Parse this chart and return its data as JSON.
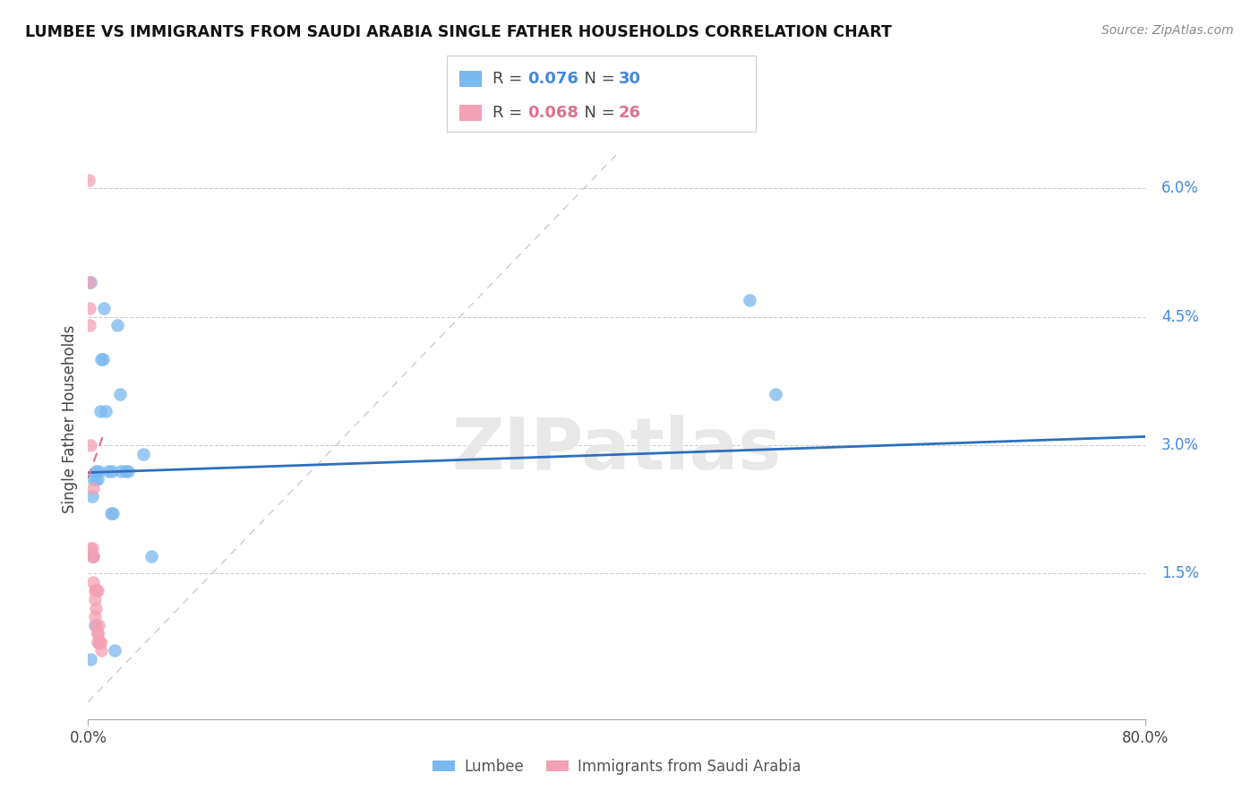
{
  "title": "LUMBEE VS IMMIGRANTS FROM SAUDI ARABIA SINGLE FATHER HOUSEHOLDS CORRELATION CHART",
  "source": "Source: ZipAtlas.com",
  "ylabel": "Single Father Households",
  "right_yticks": [
    "6.0%",
    "4.5%",
    "3.0%",
    "1.5%"
  ],
  "right_ytick_vals": [
    0.06,
    0.045,
    0.03,
    0.015
  ],
  "lumbee_color": "#7ab8f0",
  "saudi_color": "#f4a0b5",
  "trendline_lumbee_color": "#2e6fbe",
  "trendline_saudi_color": "#e07090",
  "watermark": "ZIPatlas",
  "lumbee_x": [
    0.002,
    0.004,
    0.006,
    0.007,
    0.008,
    0.009,
    0.01,
    0.011,
    0.012,
    0.013,
    0.015,
    0.017,
    0.019,
    0.022,
    0.024,
    0.028,
    0.03,
    0.002,
    0.003,
    0.004,
    0.005,
    0.006,
    0.018,
    0.02,
    0.042,
    0.048,
    0.5,
    0.52,
    0.003,
    0.025
  ],
  "lumbee_y": [
    0.049,
    0.026,
    0.026,
    0.026,
    0.027,
    0.034,
    0.04,
    0.04,
    0.046,
    0.034,
    0.027,
    0.022,
    0.022,
    0.044,
    0.036,
    0.027,
    0.027,
    0.005,
    0.017,
    0.017,
    0.009,
    0.027,
    0.027,
    0.006,
    0.029,
    0.017,
    0.047,
    0.036,
    0.024,
    0.027
  ],
  "saudi_x": [
    0.0005,
    0.001,
    0.001,
    0.001,
    0.002,
    0.002,
    0.003,
    0.003,
    0.004,
    0.004,
    0.004,
    0.005,
    0.005,
    0.005,
    0.006,
    0.006,
    0.006,
    0.007,
    0.007,
    0.007,
    0.007,
    0.008,
    0.008,
    0.009,
    0.009,
    0.01
  ],
  "saudi_y": [
    0.061,
    0.049,
    0.046,
    0.044,
    0.03,
    0.018,
    0.018,
    0.017,
    0.017,
    0.014,
    0.025,
    0.013,
    0.012,
    0.01,
    0.013,
    0.011,
    0.009,
    0.008,
    0.007,
    0.013,
    0.008,
    0.009,
    0.007,
    0.007,
    0.007,
    0.006
  ],
  "xlim": [
    0.0,
    0.8
  ],
  "ylim": [
    -0.002,
    0.068
  ],
  "blue_trendline_x": [
    0.0,
    0.8
  ],
  "blue_trendline_y": [
    0.0268,
    0.031
  ],
  "pink_trendline_x": [
    0.0,
    0.011
  ],
  "pink_trendline_y": [
    0.0262,
    0.031
  ],
  "diag_line_x": [
    0.0,
    0.4
  ],
  "diag_line_y": [
    0.0,
    0.064
  ]
}
